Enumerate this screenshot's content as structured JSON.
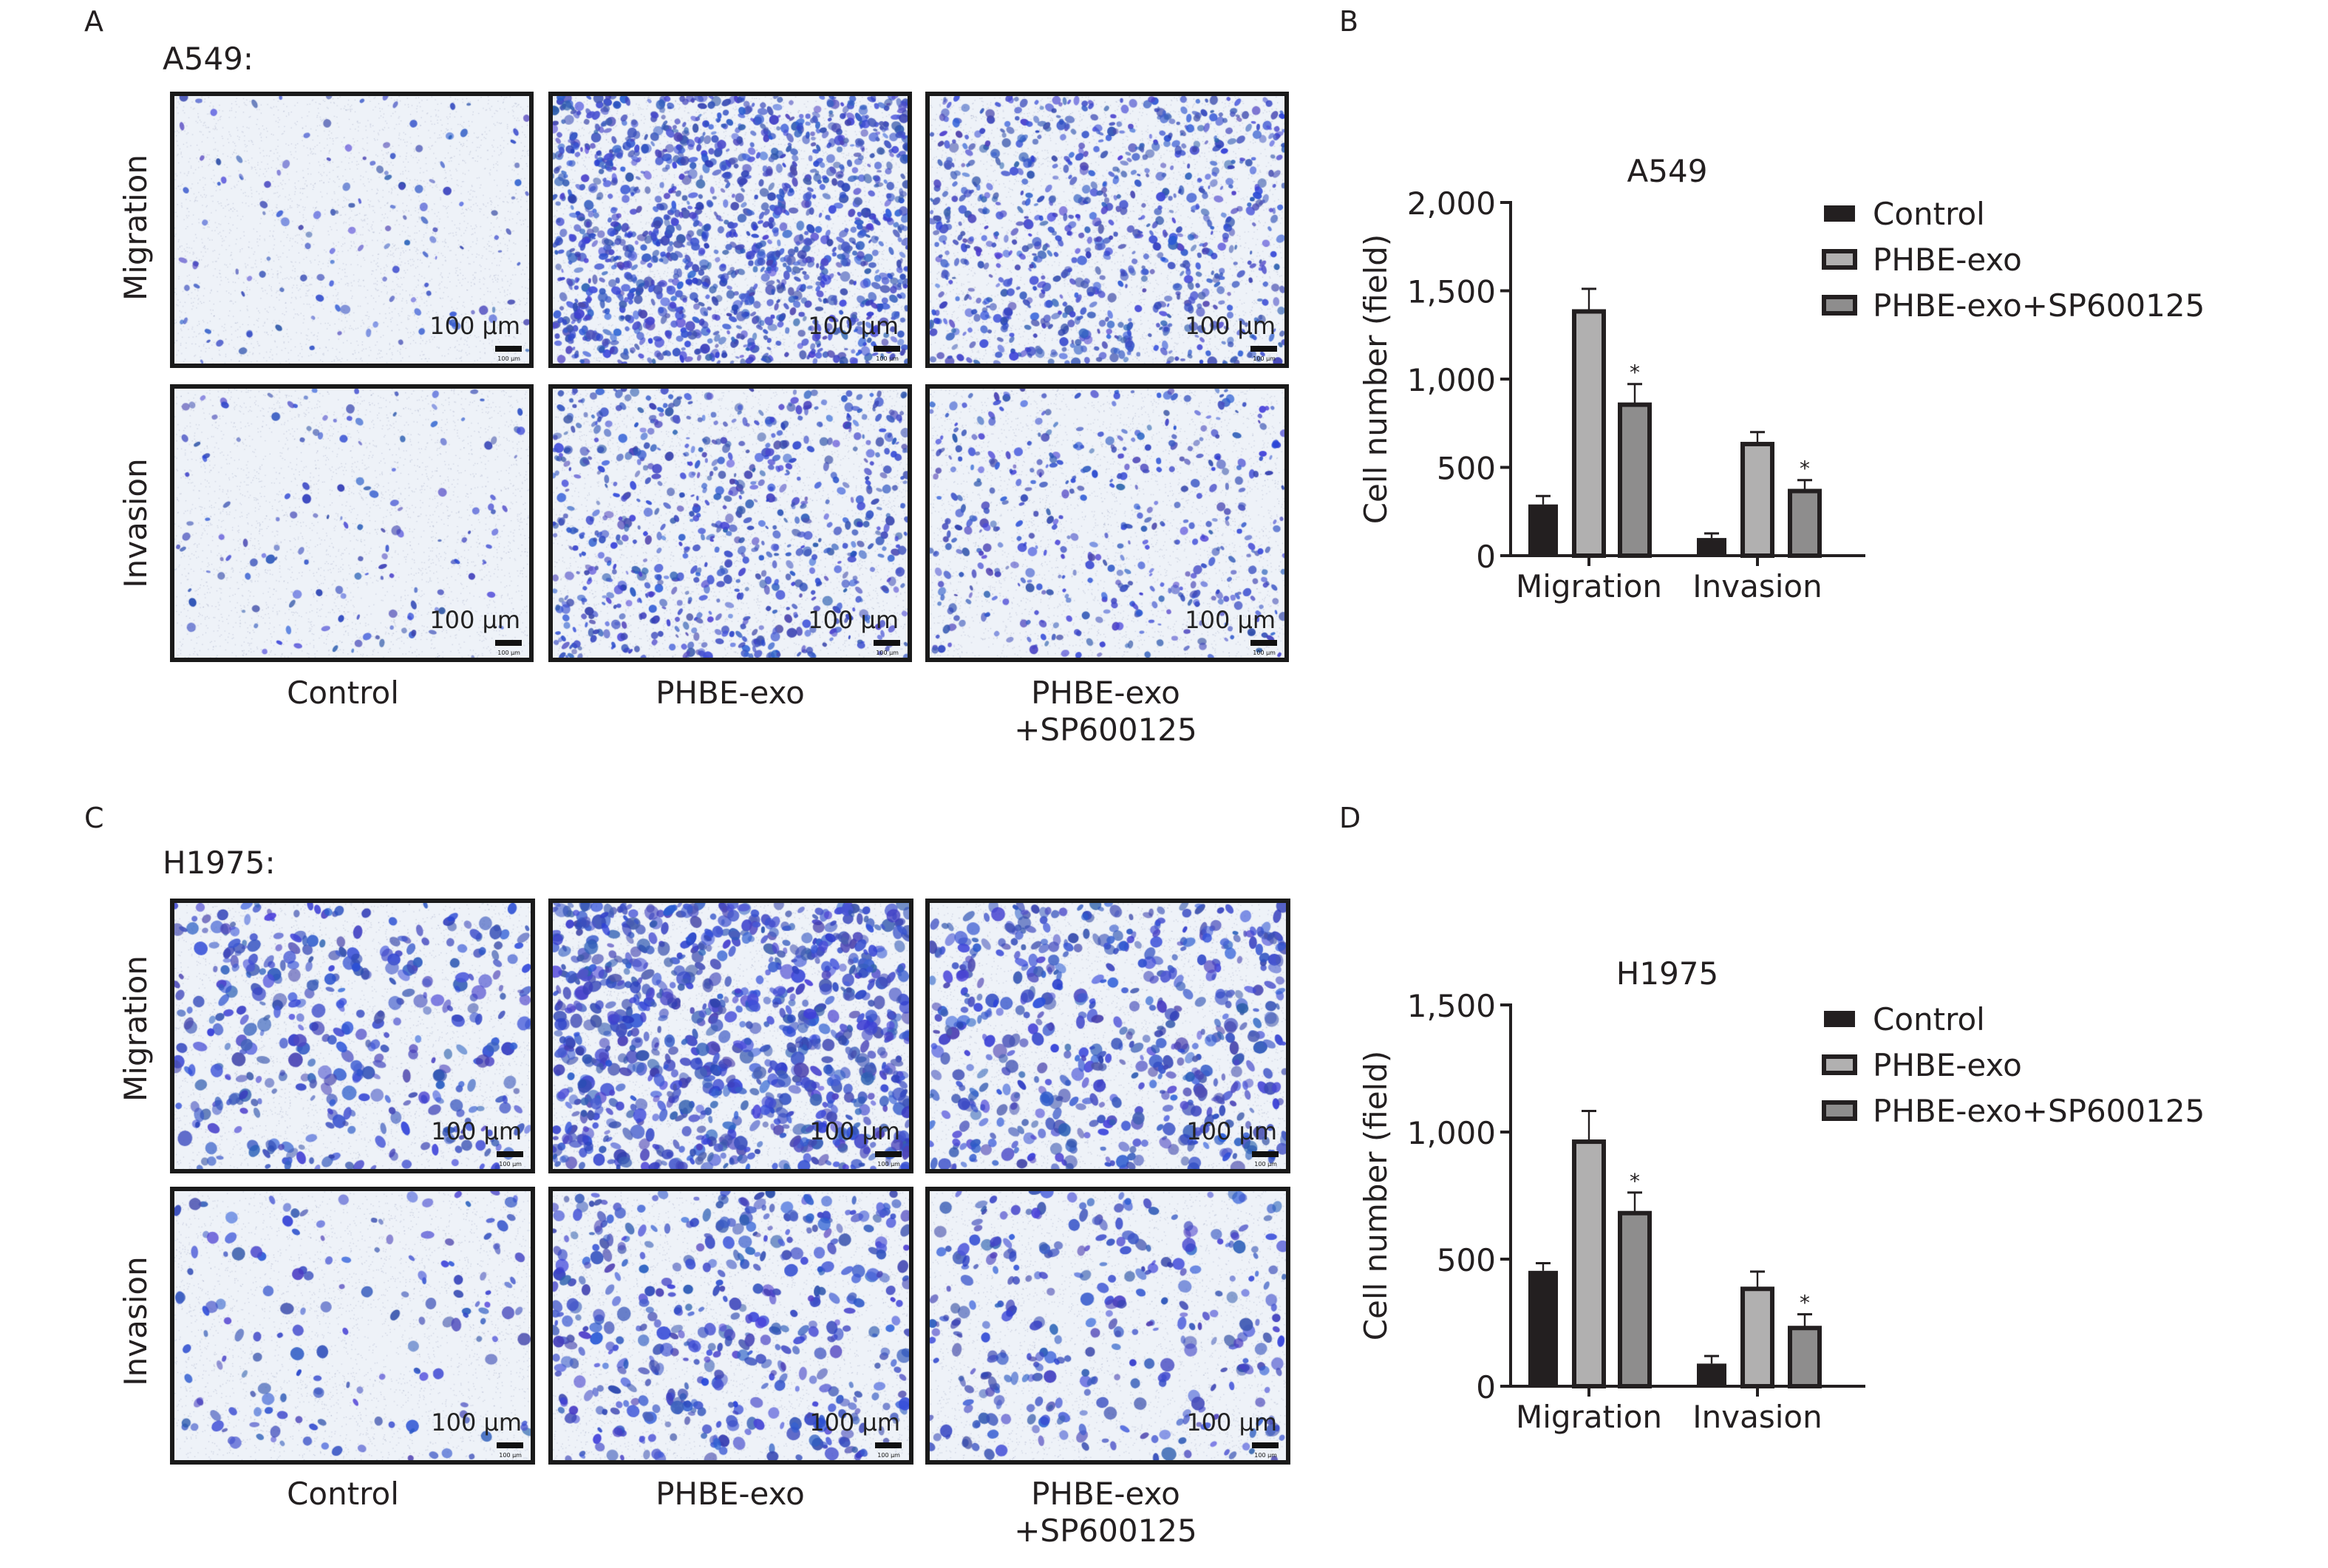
{
  "panels": {
    "A": {
      "letter": "A",
      "cell_line": "A549:"
    },
    "B": {
      "letter": "B"
    },
    "C": {
      "letter": "C",
      "cell_line": "H1975:"
    },
    "D": {
      "letter": "D"
    }
  },
  "row_labels": [
    "Migration",
    "Invasion"
  ],
  "column_labels": [
    "Control",
    "PHBE-exo",
    "PHBE-exo",
    "+SP600125"
  ],
  "scale_bar_label": "100 µm",
  "scale_bar_mini_label": "100 µm",
  "colors": {
    "control": "#231f20",
    "phbe_exo": "#b1b0b0",
    "phbe_exo_sp": "#8e8d8d",
    "stain": "#3a4fc0"
  },
  "chart_data": [
    {
      "type": "bar",
      "title": "A549",
      "ylabel": "Cell number (field)",
      "xlabel": "",
      "categories": [
        "Migration",
        "Invasion"
      ],
      "ylim": [
        0,
        2000
      ],
      "yticks": [
        "0",
        "500",
        "1,000",
        "1,500",
        "2,000"
      ],
      "ytick_values": [
        0,
        500,
        1000,
        1500,
        2000
      ],
      "legend_position": "top-right",
      "series": [
        {
          "name": "Control",
          "values": [
            290,
            100
          ],
          "error": [
            48,
            26
          ],
          "sig": [
            "",
            ""
          ]
        },
        {
          "name": "PHBE-exo",
          "values": [
            1383,
            632
          ],
          "error": [
            128,
            68
          ],
          "sig": [
            "",
            ""
          ]
        },
        {
          "name": "PHBE-exo+SP600125",
          "values": [
            855,
            366
          ],
          "error": [
            117,
            62
          ],
          "sig": [
            "*",
            "*"
          ]
        }
      ]
    },
    {
      "type": "bar",
      "title": "H1975",
      "ylabel": "Cell number (field)",
      "xlabel": "",
      "categories": [
        "Migration",
        "Invasion"
      ],
      "ylim": [
        0,
        1500
      ],
      "yticks": [
        "0",
        "500",
        "1,000",
        "1,500"
      ],
      "ytick_values": [
        0,
        500,
        1000,
        1500
      ],
      "legend_position": "top-right",
      "series": [
        {
          "name": "Control",
          "values": [
            454,
            89
          ],
          "error": [
            30,
            30
          ],
          "sig": [
            "",
            ""
          ]
        },
        {
          "name": "PHBE-exo",
          "values": [
            962,
            383
          ],
          "error": [
            121,
            68
          ],
          "sig": [
            "",
            ""
          ]
        },
        {
          "name": "PHBE-exo+SP600125",
          "values": [
            681,
            229
          ],
          "error": [
            81,
            54
          ],
          "sig": [
            "*",
            "*"
          ]
        }
      ]
    }
  ]
}
